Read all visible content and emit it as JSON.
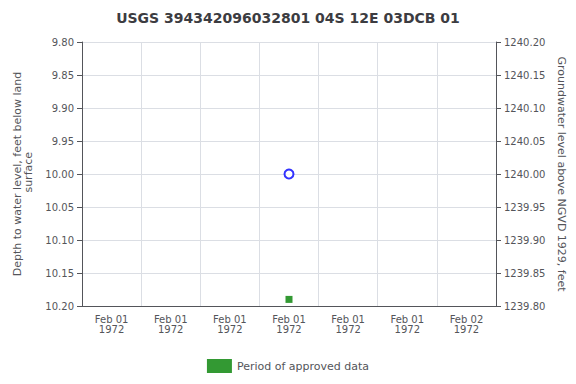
{
  "chart_data": {
    "type": "scatter",
    "title": "USGS 394342096032801 04S 12E 03DCB 01",
    "categories": [
      "Feb 01\n1972",
      "Feb 01\n1972",
      "Feb 01\n1972",
      "Feb 01\n1972",
      "Feb 01\n1972",
      "Feb 01\n1972",
      "Feb 02\n1972"
    ],
    "y_label": "Depth to water level, feet below land\n surface",
    "y2_label": "Groundwater level above NGVD 1929, feet",
    "series": [
      {
        "color": "#0000ff",
        "marker": "open-circle",
        "values": [
          null,
          null,
          null,
          10.0,
          null,
          null,
          null
        ]
      },
      {
        "name": "Period of approved data",
        "color": "#008000",
        "marker": "square",
        "values": [
          null,
          null,
          null,
          10.19,
          null,
          null,
          null
        ]
      }
    ],
    "ylim": [
      10.2,
      9.8
    ],
    "yticks": [
      {
        "value": 9.8,
        "label": "9.80"
      },
      9.85,
      {
        "value": 9.9,
        "label": "9.90"
      },
      9.95,
      {
        "value": 10,
        "label": "10.00"
      },
      10.05,
      {
        "value": 10.1,
        "label": "10.10"
      },
      10.15,
      {
        "value": 10.2,
        "label": "10.20"
      }
    ],
    "y2lim": [
      1239.8,
      1240.2
    ],
    "y2ticks": [
      {
        "value": 1240.2,
        "label": "1240.20"
      },
      1240.15,
      {
        "value": 1240.1,
        "label": "1240.10"
      },
      1240.05,
      {
        "value": 1240,
        "label": "1240.00"
      },
      1239.95,
      {
        "value": 1239.9,
        "label": "1239.90"
      },
      1239.85,
      {
        "value": 1239.8,
        "label": "1239.80"
      }
    ],
    "grid": true,
    "legend": "bottom"
  }
}
